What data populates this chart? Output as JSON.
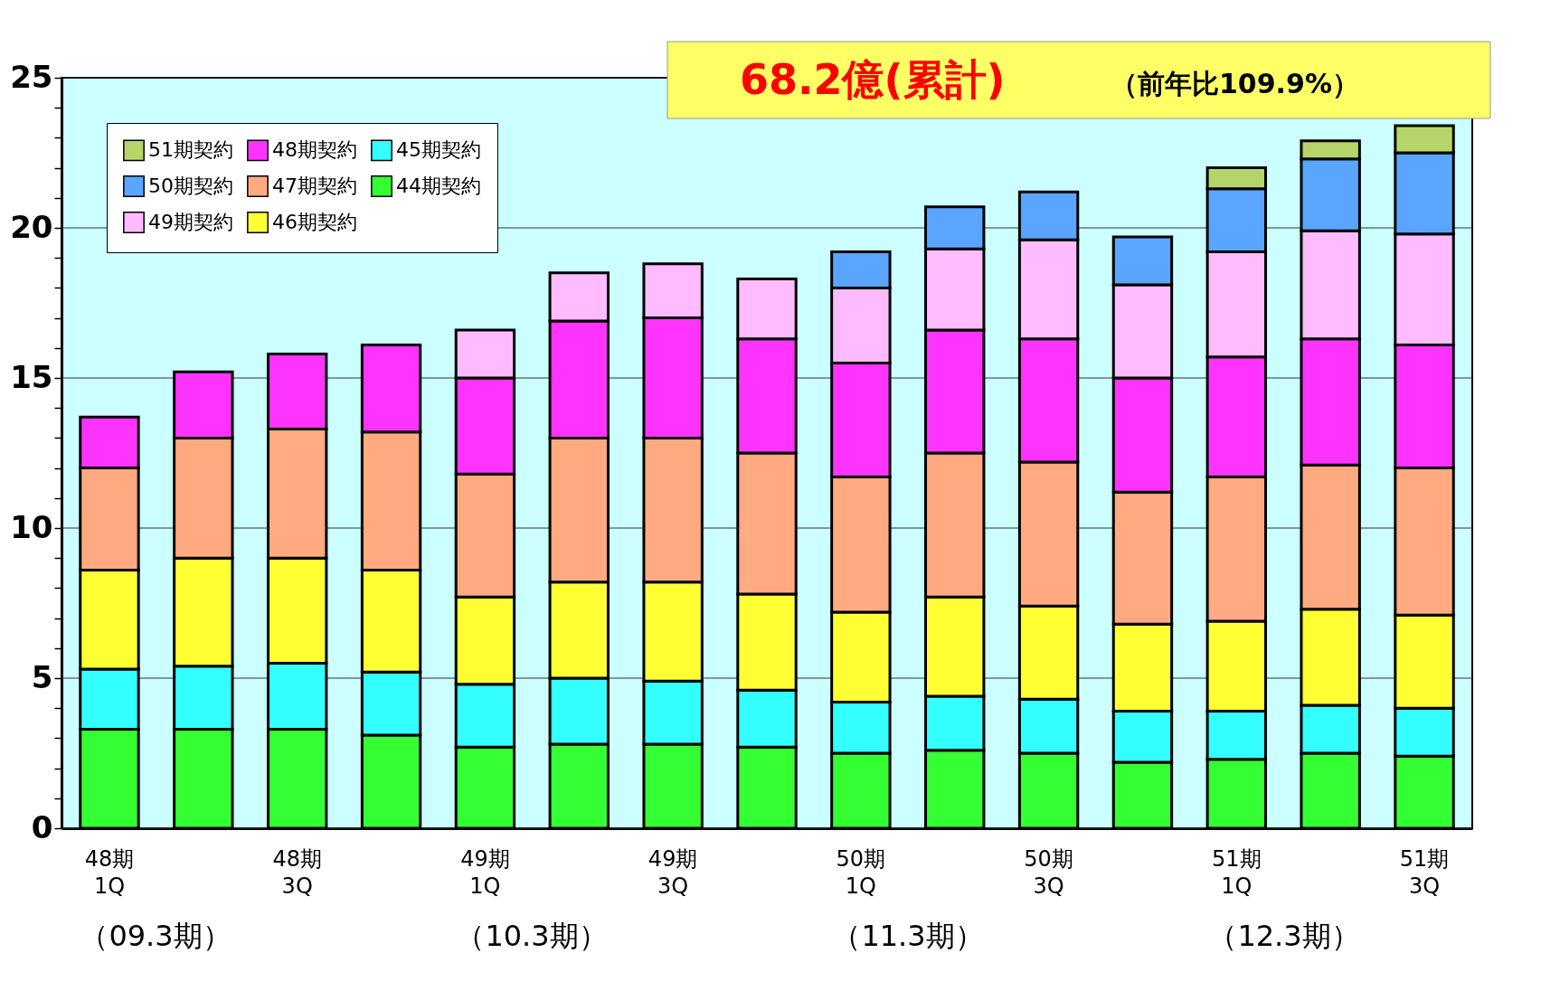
{
  "chart_data": {
    "type": "bar",
    "stacked": true,
    "title": "68.2億(累計)",
    "subtitle": "（前年比109.9%）",
    "categories": [
      "48期\n1Q",
      null,
      "48期\n3Q",
      null,
      "49期\n1Q",
      null,
      "49期\n3Q",
      null,
      "50期\n1Q",
      null,
      "50期\n3Q",
      null,
      "51期\n1Q",
      null,
      "51期\n3Q"
    ],
    "series": [
      {
        "name": "44期契約",
        "color": "#33ff33",
        "values": [
          3.3,
          3.3,
          3.3,
          3.1,
          2.7,
          2.8,
          2.8,
          2.7,
          2.5,
          2.6,
          2.5,
          2.2,
          2.3,
          2.5,
          2.4
        ]
      },
      {
        "name": "45期契約",
        "color": "#33ffff",
        "values": [
          2.0,
          2.1,
          2.2,
          2.1,
          2.1,
          2.2,
          2.1,
          1.9,
          1.7,
          1.8,
          1.8,
          1.7,
          1.6,
          1.6,
          1.6
        ]
      },
      {
        "name": "46期契約",
        "color": "#ffff33",
        "values": [
          3.3,
          3.6,
          3.5,
          3.4,
          2.9,
          3.2,
          3.3,
          3.2,
          3.0,
          3.3,
          3.1,
          2.9,
          3.0,
          3.2,
          3.1
        ]
      },
      {
        "name": "47期契約",
        "color": "#ffaa80",
        "values": [
          3.4,
          4.0,
          4.3,
          4.6,
          4.1,
          4.8,
          4.8,
          4.7,
          4.5,
          4.8,
          4.8,
          4.4,
          4.8,
          4.8,
          4.9
        ]
      },
      {
        "name": "48期契約",
        "color": "#ff33ff",
        "values": [
          1.7,
          2.2,
          2.5,
          2.9,
          3.2,
          3.9,
          4.0,
          3.8,
          3.8,
          4.1,
          4.1,
          3.8,
          4.0,
          4.2,
          4.1
        ]
      },
      {
        "name": "49期契約",
        "color": "#ffbbff",
        "values": [
          null,
          null,
          null,
          null,
          1.6,
          1.6,
          1.8,
          2.0,
          2.5,
          2.7,
          3.3,
          3.1,
          3.5,
          3.6,
          3.7
        ]
      },
      {
        "name": "50期契約",
        "color": "#5aa5ff",
        "values": [
          null,
          null,
          null,
          null,
          null,
          null,
          null,
          null,
          1.2,
          1.4,
          1.6,
          1.6,
          2.1,
          2.4,
          2.7
        ]
      },
      {
        "name": "51期契約",
        "color": "#b5d56a",
        "values": [
          null,
          null,
          null,
          null,
          null,
          null,
          null,
          null,
          null,
          null,
          null,
          null,
          0.7,
          0.6,
          0.9
        ]
      }
    ],
    "ylim": [
      0,
      25
    ],
    "yticks": [
      0,
      {
        "value": 1,
        "label": null
      },
      {
        "value": 2,
        "label": null
      },
      {
        "value": 3,
        "label": null
      },
      {
        "value": 4,
        "label": null
      },
      5,
      {
        "value": 6,
        "label": null
      },
      {
        "value": 7,
        "label": null
      },
      {
        "value": 8,
        "label": null
      },
      {
        "value": 9,
        "label": null
      },
      10,
      {
        "value": 11,
        "label": null
      },
      {
        "value": 12,
        "label": null
      },
      {
        "value": 13,
        "label": null
      },
      {
        "value": 14,
        "label": null
      },
      15,
      {
        "value": 16,
        "label": null
      },
      {
        "value": 17,
        "label": null
      },
      {
        "value": 18,
        "label": null
      },
      {
        "value": 19,
        "label": null
      },
      20,
      {
        "value": 21,
        "label": null
      },
      {
        "value": 22,
        "label": null
      },
      {
        "value": 23,
        "label": null
      },
      {
        "value": 24,
        "label": null
      },
      25
    ],
    "grid": "y",
    "legend": "top left",
    "annotations": [
      "（09.3期）",
      "（10.3期）",
      "（11.3期）",
      "（12.3期）"
    ]
  }
}
